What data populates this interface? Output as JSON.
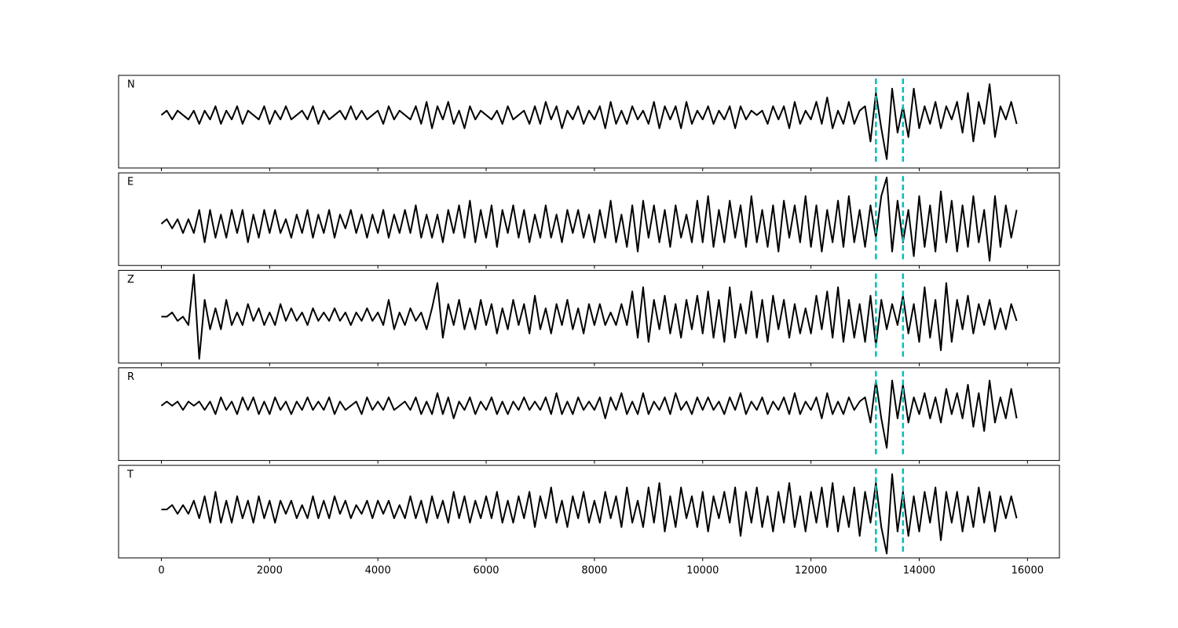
{
  "chart_data": {
    "type": "line",
    "x": [
      0,
      100,
      200,
      300,
      400,
      500,
      600,
      700,
      800,
      900,
      1000,
      1100,
      1200,
      1300,
      1400,
      1500,
      1600,
      1700,
      1800,
      1900,
      2000,
      2100,
      2200,
      2300,
      2400,
      2500,
      2600,
      2700,
      2800,
      2900,
      3000,
      3100,
      3200,
      3300,
      3400,
      3500,
      3600,
      3700,
      3800,
      3900,
      4000,
      4100,
      4200,
      4300,
      4400,
      4500,
      4600,
      4700,
      4800,
      4900,
      5000,
      5100,
      5200,
      5300,
      5400,
      5500,
      5600,
      5700,
      5800,
      5900,
      6000,
      6100,
      6200,
      6300,
      6400,
      6500,
      6600,
      6700,
      6800,
      6900,
      7000,
      7100,
      7200,
      7300,
      7400,
      7500,
      7600,
      7700,
      7800,
      7900,
      8000,
      8100,
      8200,
      8300,
      8400,
      8500,
      8600,
      8700,
      8800,
      8900,
      9000,
      9100,
      9200,
      9300,
      9400,
      9500,
      9600,
      9700,
      9800,
      9900,
      10000,
      10100,
      10200,
      10300,
      10400,
      10500,
      10600,
      10700,
      10800,
      10900,
      11000,
      11100,
      11200,
      11300,
      11400,
      11500,
      11600,
      11700,
      11800,
      11900,
      12000,
      12100,
      12200,
      12300,
      12400,
      12500,
      12600,
      12700,
      12800,
      12900,
      13000,
      13100,
      13200,
      13300,
      13400,
      13500,
      13600,
      13700,
      13800,
      13900,
      14000,
      14100,
      14200,
      14300,
      14400,
      14500,
      14600,
      14700,
      14800,
      14900,
      15000,
      15100,
      15200,
      15300,
      15400,
      15500,
      15600,
      15700,
      15800
    ],
    "xlim": [
      -790,
      16590
    ],
    "xticks": [
      0,
      2000,
      4000,
      6000,
      8000,
      10000,
      12000,
      14000,
      16000
    ],
    "vlines": [
      13200,
      13700
    ],
    "vline_color": "#00bfbf",
    "series": [
      {
        "name": "N",
        "color": "#000000",
        "ylim": [
          -12,
          9
        ],
        "values": [
          0,
          1,
          -1,
          1,
          0,
          -1,
          1,
          -2,
          1,
          -1,
          2,
          -2,
          1,
          -1,
          2,
          -2,
          1,
          0,
          -1,
          2,
          -2,
          1,
          -1,
          2,
          -1,
          0,
          1,
          -1,
          2,
          -2,
          1,
          -1,
          0,
          1,
          -1,
          2,
          -1,
          1,
          -1,
          0,
          1,
          -2,
          2,
          -1,
          1,
          0,
          -1,
          2,
          -2,
          3,
          -3,
          2,
          -1,
          3,
          -2,
          1,
          -3,
          2,
          -1,
          1,
          0,
          -1,
          1,
          -2,
          2,
          -1,
          0,
          1,
          -2,
          2,
          -2,
          3,
          -1,
          2,
          -3,
          1,
          -1,
          2,
          -2,
          1,
          -1,
          2,
          -3,
          3,
          -2,
          1,
          -2,
          2,
          -1,
          1,
          -2,
          3,
          -3,
          2,
          -1,
          2,
          -3,
          3,
          -2,
          1,
          -1,
          2,
          -2,
          1,
          -1,
          2,
          -3,
          2,
          -1,
          1,
          0,
          1,
          -2,
          2,
          -1,
          2,
          -3,
          3,
          -2,
          1,
          -1,
          3,
          -2,
          4,
          -3,
          1,
          -2,
          3,
          -2,
          1,
          2,
          -6,
          5,
          -3,
          -10,
          6,
          -4,
          2,
          -5,
          6,
          -3,
          2,
          -2,
          3,
          -3,
          2,
          -1,
          3,
          -4,
          5,
          -6,
          3,
          -2,
          7,
          -5,
          2,
          -1,
          3,
          -2
        ]
      },
      {
        "name": "E",
        "color": "#000000",
        "ylim": [
          -9,
          11
        ],
        "values": [
          0,
          1,
          -1,
          1,
          -2,
          1,
          -2,
          3,
          -4,
          3,
          -3,
          2,
          -3,
          3,
          -2,
          3,
          -4,
          2,
          -3,
          3,
          -2,
          3,
          -2,
          1,
          -3,
          2,
          -2,
          3,
          -3,
          2,
          -2,
          3,
          -3,
          2,
          -1,
          3,
          -2,
          2,
          -3,
          2,
          -2,
          3,
          -3,
          2,
          -2,
          3,
          -2,
          4,
          -3,
          2,
          -3,
          2,
          -4,
          3,
          -2,
          4,
          -3,
          5,
          -4,
          3,
          -3,
          4,
          -5,
          3,
          -2,
          4,
          -3,
          3,
          -4,
          2,
          -3,
          4,
          -3,
          2,
          -4,
          3,
          -2,
          3,
          -3,
          2,
          -4,
          3,
          -3,
          5,
          -4,
          2,
          -5,
          4,
          -6,
          5,
          -3,
          4,
          -4,
          3,
          -5,
          4,
          -3,
          2,
          -4,
          5,
          -4,
          6,
          -5,
          3,
          -4,
          5,
          -3,
          4,
          -5,
          6,
          -4,
          3,
          -5,
          4,
          -6,
          5,
          -3,
          4,
          -4,
          6,
          -5,
          4,
          -6,
          3,
          -4,
          5,
          -5,
          6,
          -4,
          3,
          -5,
          4,
          -3,
          6,
          10,
          -6,
          5,
          -4,
          3,
          -7,
          6,
          -5,
          4,
          -6,
          7,
          -4,
          5,
          -6,
          4,
          -5,
          6,
          -4,
          3,
          -8,
          6,
          -5,
          4,
          -3,
          3
        ]
      },
      {
        "name": "Z",
        "color": "#000000",
        "ylim": [
          -11,
          11
        ],
        "values": [
          0,
          0,
          1,
          -1,
          0,
          -2,
          10,
          -10,
          4,
          -3,
          2,
          -3,
          4,
          -2,
          1,
          -2,
          3,
          -1,
          2,
          -2,
          1,
          -2,
          3,
          -1,
          2,
          -1,
          1,
          -2,
          2,
          -1,
          1,
          -1,
          2,
          -1,
          1,
          -2,
          1,
          -1,
          2,
          -1,
          1,
          -2,
          4,
          -3,
          1,
          -2,
          2,
          -1,
          1,
          -3,
          2,
          8,
          -5,
          3,
          -2,
          4,
          -3,
          2,
          -3,
          4,
          -2,
          3,
          -4,
          2,
          -3,
          4,
          -2,
          3,
          -4,
          5,
          -3,
          2,
          -4,
          3,
          -2,
          4,
          -3,
          2,
          -4,
          3,
          -2,
          3,
          -2,
          1,
          -2,
          3,
          -2,
          6,
          -5,
          7,
          -6,
          4,
          -3,
          5,
          -4,
          3,
          -5,
          4,
          -3,
          5,
          -4,
          6,
          -5,
          4,
          -6,
          7,
          -5,
          3,
          -4,
          6,
          -5,
          4,
          -6,
          5,
          -3,
          4,
          -5,
          3,
          -4,
          2,
          -4,
          5,
          -3,
          6,
          -5,
          7,
          -6,
          4,
          -5,
          3,
          -6,
          5,
          -7,
          4,
          -3,
          3,
          -2,
          5,
          -4,
          3,
          -6,
          7,
          -5,
          4,
          -8,
          8,
          -6,
          4,
          -3,
          5,
          -4,
          3,
          -2,
          4,
          -3,
          2,
          -3,
          3,
          -1
        ]
      },
      {
        "name": "R",
        "color": "#000000",
        "ylim": [
          -13,
          9
        ],
        "values": [
          0,
          1,
          0,
          1,
          -1,
          1,
          0,
          1,
          -1,
          1,
          -2,
          2,
          -1,
          1,
          -2,
          2,
          -1,
          2,
          -2,
          1,
          -2,
          2,
          -1,
          1,
          -2,
          1,
          -1,
          2,
          -1,
          1,
          -1,
          2,
          -2,
          1,
          -1,
          0,
          1,
          -2,
          2,
          -1,
          1,
          -1,
          2,
          -1,
          0,
          1,
          -1,
          2,
          -2,
          1,
          -2,
          3,
          -2,
          2,
          -3,
          1,
          -1,
          2,
          -2,
          1,
          -1,
          2,
          -2,
          1,
          -2,
          1,
          -1,
          2,
          -1,
          1,
          -1,
          2,
          -2,
          3,
          -2,
          1,
          -2,
          2,
          -1,
          1,
          -1,
          2,
          -3,
          2,
          -1,
          3,
          -2,
          1,
          -2,
          3,
          -2,
          1,
          -1,
          2,
          -2,
          3,
          -1,
          1,
          -2,
          2,
          -1,
          2,
          -1,
          1,
          -2,
          2,
          -1,
          3,
          -2,
          1,
          -1,
          2,
          -2,
          1,
          -1,
          2,
          -2,
          3,
          -2,
          1,
          -1,
          2,
          -3,
          3,
          -2,
          1,
          -2,
          2,
          -1,
          1,
          2,
          -4,
          6,
          -3,
          -10,
          6,
          -3,
          5,
          -4,
          2,
          -2,
          3,
          -3,
          2,
          -4,
          4,
          -2,
          3,
          -3,
          5,
          -5,
          3,
          -6,
          6,
          -4,
          2,
          -3,
          4,
          -3
        ]
      },
      {
        "name": "T",
        "color": "#000000",
        "ylim": [
          -11,
          10
        ],
        "values": [
          0,
          0,
          1,
          -1,
          1,
          -1,
          2,
          -2,
          3,
          -3,
          4,
          -3,
          2,
          -3,
          3,
          -2,
          2,
          -3,
          3,
          -2,
          2,
          -3,
          2,
          -1,
          2,
          -2,
          1,
          -2,
          3,
          -2,
          2,
          -2,
          3,
          -1,
          2,
          -2,
          1,
          -1,
          2,
          -2,
          2,
          -1,
          2,
          -2,
          1,
          -2,
          3,
          -2,
          2,
          -3,
          3,
          -2,
          2,
          -3,
          4,
          -2,
          3,
          -3,
          2,
          -2,
          3,
          -2,
          4,
          -3,
          2,
          -3,
          3,
          -2,
          4,
          -4,
          3,
          -2,
          5,
          -3,
          2,
          -4,
          3,
          -2,
          4,
          -3,
          2,
          -3,
          4,
          -2,
          3,
          -4,
          5,
          -3,
          2,
          -4,
          5,
          -3,
          6,
          -5,
          3,
          -4,
          5,
          -2,
          3,
          -4,
          4,
          -5,
          3,
          -2,
          4,
          -3,
          5,
          -6,
          4,
          -3,
          5,
          -4,
          3,
          -5,
          4,
          -3,
          6,
          -4,
          3,
          -5,
          4,
          -3,
          5,
          -4,
          6,
          -5,
          3,
          -4,
          5,
          -6,
          4,
          -3,
          6,
          -4,
          -10,
          8,
          -5,
          4,
          -6,
          3,
          -5,
          4,
          -3,
          5,
          -7,
          4,
          -3,
          4,
          -5,
          3,
          -4,
          5,
          -3,
          4,
          -5,
          3,
          -2,
          3,
          -2
        ]
      }
    ]
  }
}
